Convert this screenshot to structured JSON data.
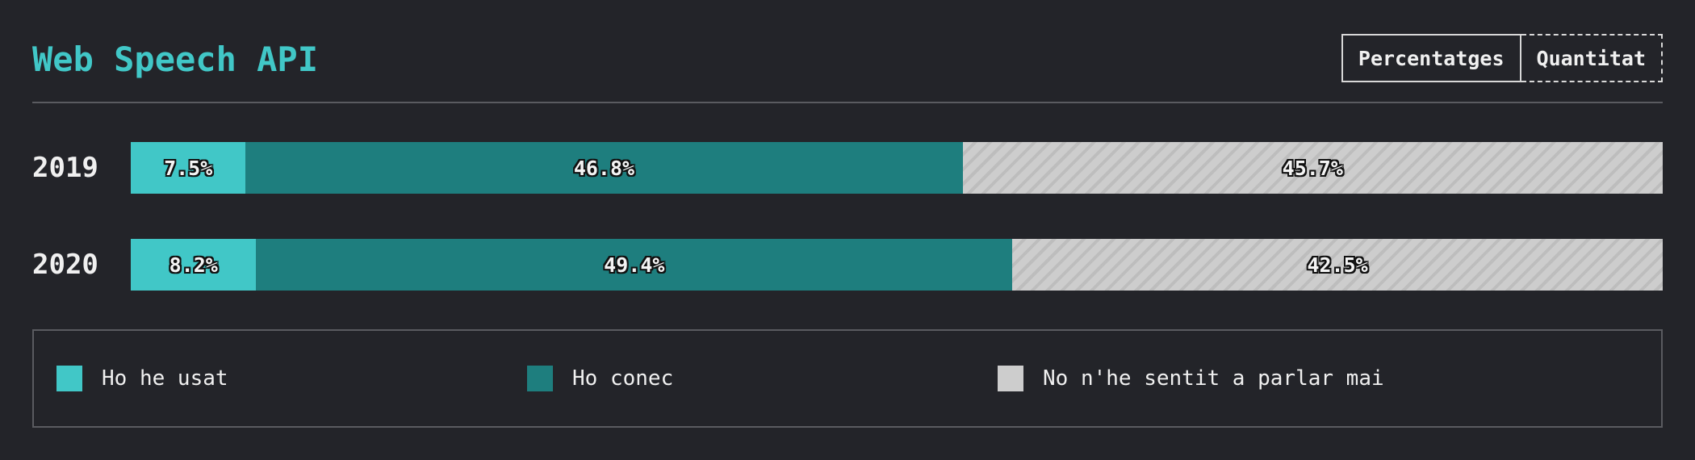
{
  "header": {
    "title": "Web Speech API",
    "toggle": {
      "percent_label": "Percentatges",
      "count_label": "Quantitat",
      "selected": "percent"
    }
  },
  "colors": {
    "used": "#41c7c7",
    "known": "#1e7e7e",
    "never_heard": "#cdcdcd"
  },
  "chart_data": {
    "type": "bar",
    "orientation": "horizontal",
    "stacked": true,
    "normalized": true,
    "categories": [
      "2019",
      "2020"
    ],
    "series": [
      {
        "name": "Ho he usat",
        "key": "used",
        "values": [
          7.5,
          8.2
        ],
        "labels": [
          "7.5%",
          "8.2%"
        ]
      },
      {
        "name": "Ho conec",
        "key": "known",
        "values": [
          46.8,
          49.4
        ],
        "labels": [
          "46.8%",
          "49.4%"
        ]
      },
      {
        "name": "No n'he sentit a parlar mai",
        "key": "never_heard",
        "values": [
          45.7,
          42.5
        ],
        "labels": [
          "45.7%",
          "42.5%"
        ]
      }
    ],
    "xlim": [
      0,
      100
    ],
    "legend_position": "bottom"
  }
}
